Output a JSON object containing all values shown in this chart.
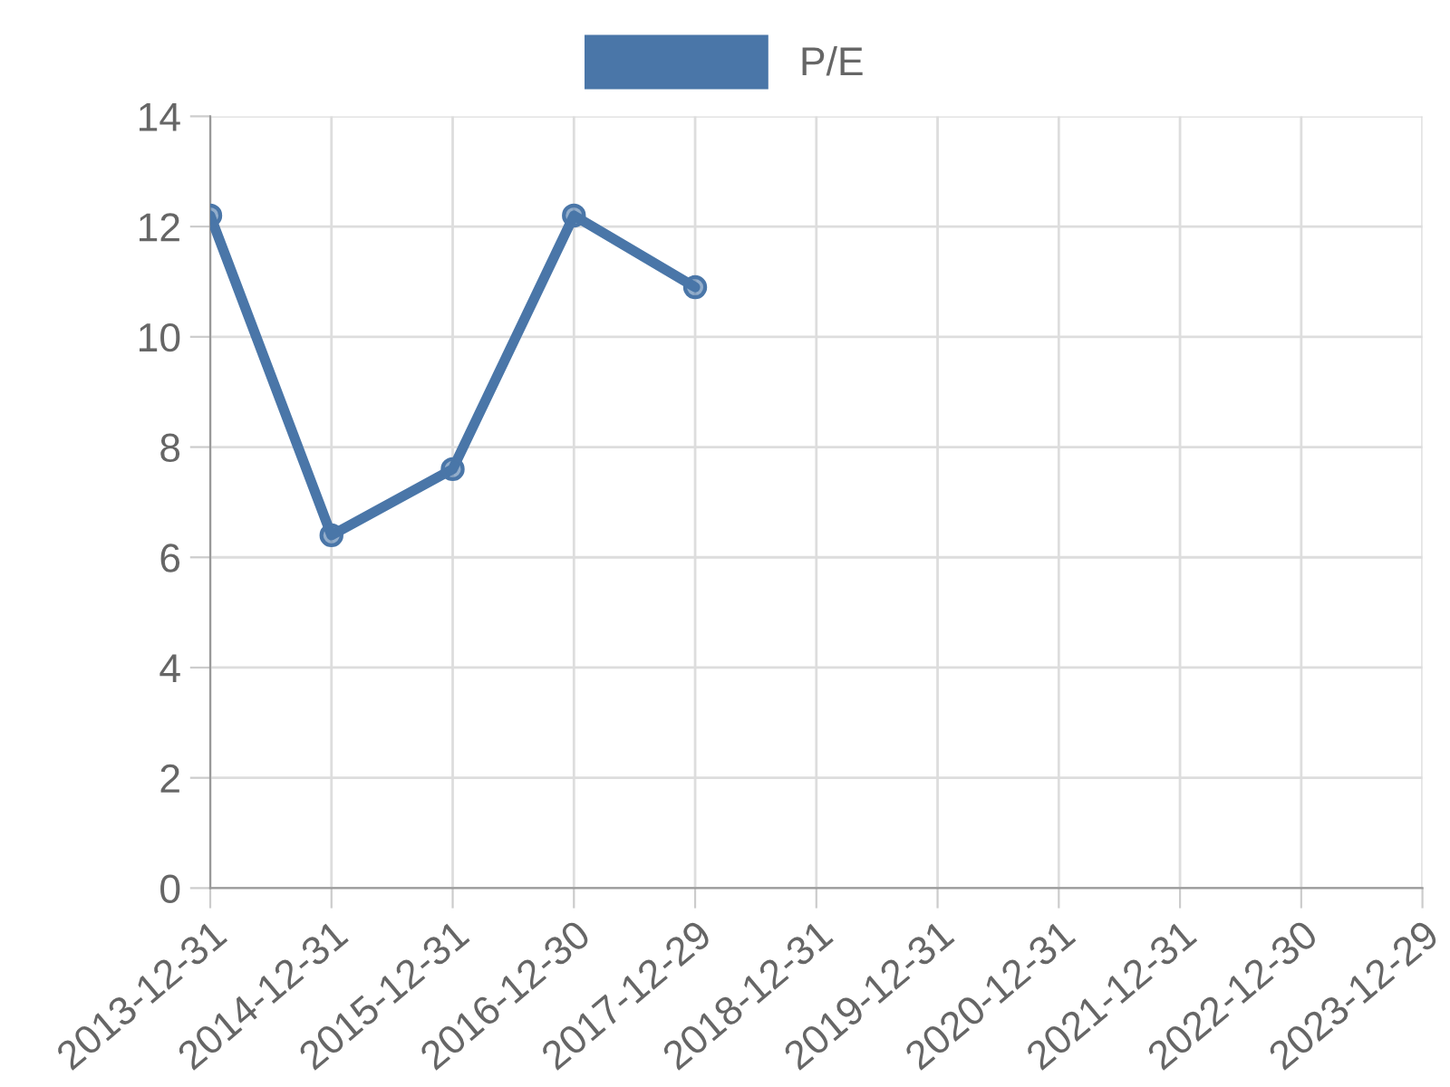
{
  "chart_data": {
    "type": "line",
    "categories": [
      "2013-12-31",
      "2014-12-31",
      "2015-12-31",
      "2016-12-30",
      "2017-12-29",
      "2018-12-31",
      "2019-12-31",
      "2020-12-31",
      "2021-12-31",
      "2022-12-30",
      "2023-12-29"
    ],
    "series": [
      {
        "name": "P/E",
        "color": "#4a76a8",
        "values": [
          12.2,
          6.4,
          7.6,
          12.2,
          10.9,
          null,
          null,
          null,
          null,
          null,
          null
        ]
      }
    ],
    "ylim": [
      0,
      14
    ],
    "yticks": [
      0,
      2,
      4,
      6,
      8,
      10,
      12,
      14
    ],
    "grid": true,
    "legend": "top",
    "marker": "circle",
    "line_style": "solid"
  }
}
